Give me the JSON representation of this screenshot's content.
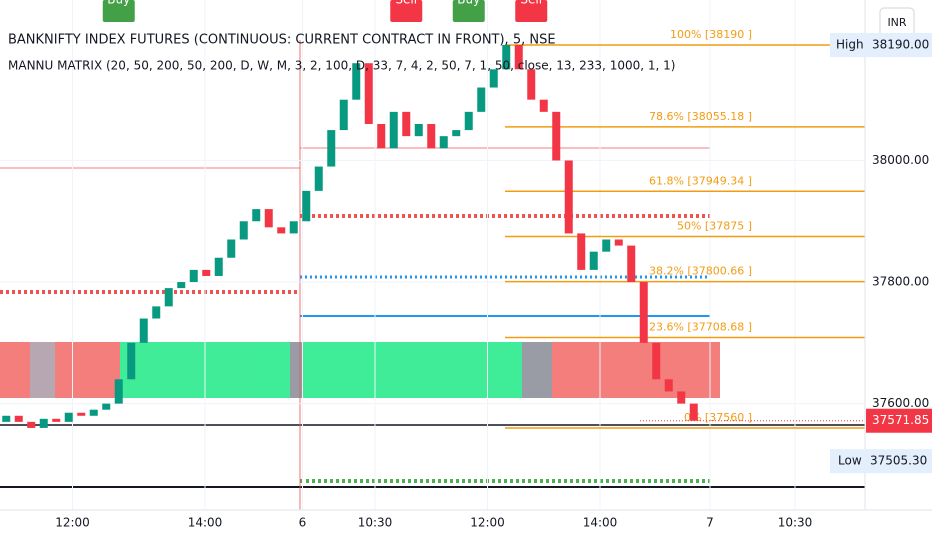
{
  "chart_data": {
    "type": "candlestick",
    "title": "BANKNIFTY INDEX FUTURES (CONTINUOUS: CURRENT CONTRACT IN FRONT), 5, NSE",
    "subtitle": "MANNU MATRIX (20, 50, 200, 50, 200, D, W, M, 3, 2, 100, D, 33, 7, 4, 2, 50, 7, 1, 50, close, 13, 233, 1000, 1, 1)",
    "currency": "INR",
    "up_color": "#089981",
    "down_color": "#f23645",
    "x": [
      0,
      1,
      2,
      3,
      4,
      5,
      6,
      7,
      8,
      9,
      10,
      11,
      12,
      13,
      14,
      15,
      16,
      17,
      18,
      19,
      20,
      21,
      22,
      23,
      24,
      25,
      26,
      27,
      28,
      29,
      30,
      31,
      32,
      33,
      34,
      35,
      36,
      37,
      38,
      39,
      40,
      41,
      42,
      43,
      44,
      45,
      46,
      47,
      48,
      49,
      50,
      51,
      52,
      53,
      54,
      55
    ],
    "open": [
      37570,
      37580,
      37570,
      37560,
      37575,
      37570,
      37585,
      37580,
      37590,
      37600,
      37640,
      37700,
      37740,
      37760,
      37790,
      37800,
      37820,
      37810,
      37840,
      37870,
      37900,
      37920,
      37890,
      37880,
      37900,
      37950,
      37990,
      38050,
      38100,
      38160,
      38060,
      38020,
      38080,
      38040,
      38060,
      38020,
      38040,
      38050,
      38080,
      38120,
      38150,
      38190,
      38150,
      38100,
      38080,
      38000,
      37880,
      37820,
      37850,
      37870,
      37860,
      37800,
      37700,
      37640,
      37620,
      37600
    ],
    "high": {
      "value": 38190,
      "label": "38190.00"
    },
    "low": {
      "value": 37505.3,
      "label": "37505.30"
    },
    "close": [
      37580,
      37570,
      37560,
      37575,
      37570,
      37585,
      37580,
      37590,
      37600,
      37640,
      37700,
      37740,
      37760,
      37790,
      37800,
      37820,
      37810,
      37840,
      37870,
      37900,
      37920,
      37890,
      37880,
      37900,
      37950,
      37990,
      38050,
      38100,
      38160,
      38060,
      38020,
      38080,
      38040,
      38060,
      38020,
      38040,
      38050,
      38080,
      38120,
      38150,
      38190,
      38150,
      38100,
      38080,
      38000,
      37880,
      37820,
      37850,
      37870,
      37860,
      37800,
      37700,
      37640,
      37620,
      37600,
      37571.85
    ],
    "xlim": [
      -0.5,
      68.7
    ],
    "xticks": [
      {
        "value": 5.3,
        "label": "12:00"
      },
      {
        "value": 15.9,
        "label": "14:00"
      },
      {
        "value": 23.7,
        "label": "6"
      },
      {
        "value": 29.5,
        "label": "10:30"
      },
      {
        "value": 38.5,
        "label": "12:00"
      },
      {
        "value": 47.5,
        "label": "14:00"
      },
      {
        "value": 56.3,
        "label": "7"
      },
      {
        "value": 63.1,
        "label": "10:30"
      }
    ],
    "ylim": [
      37425,
      38264
    ],
    "yticks": [
      {
        "value": 37600,
        "label": "37600.00"
      },
      {
        "value": 37800,
        "label": "37800.00"
      },
      {
        "value": 38000,
        "label": "38000.00"
      }
    ],
    "fib_levels": [
      {
        "label": "100% [38190 ]",
        "value": 38190
      },
      {
        "label": "78.6% [38055.18 ]",
        "value": 38055.18
      },
      {
        "label": "61.8% [37949.34 ]",
        "value": 37949.34
      },
      {
        "label": "50% [37875 ]",
        "value": 37875
      },
      {
        "label": "38.2% [37800.66 ]",
        "value": 37800.66
      },
      {
        "label": "23.6% [37708.68 ]",
        "value": 37708.68
      },
      {
        "label": "0% [37560 ]",
        "value": 37560
      }
    ],
    "fib_color": "#f39c12",
    "annotations": [
      {
        "text": "Sell",
        "index": 42
      },
      {
        "text": "Sell",
        "index": 32
      },
      {
        "text": "Buy",
        "index": 37
      },
      {
        "text": "Buy",
        "index": 9
      }
    ],
    "high_label": "High",
    "low_label": "Low",
    "last_price": 37571.85
  }
}
